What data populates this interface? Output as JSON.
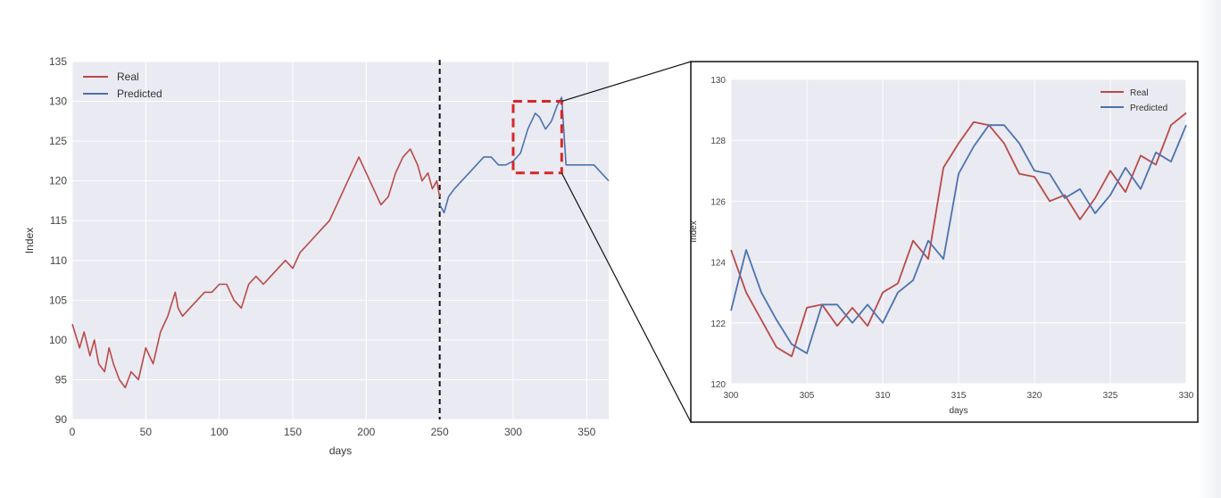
{
  "colors": {
    "real": "#b94a48",
    "predicted": "#4c72b0",
    "grid_bg": "#eaeaf2",
    "grid_line": "#ffffff",
    "zoom_box": "#d62728"
  },
  "chart_data": [
    {
      "type": "line",
      "xlabel": "days",
      "ylabel": "Index",
      "xlim": [
        0,
        365
      ],
      "ylim": [
        90,
        135
      ],
      "xticks": [
        0,
        50,
        100,
        150,
        200,
        250,
        300,
        350
      ],
      "yticks": [
        90,
        95,
        100,
        105,
        110,
        115,
        120,
        125,
        130,
        135
      ],
      "legend_position": "top-left",
      "split_marker": {
        "x": 250,
        "style": "black dashed vertical line"
      },
      "zoom_box": {
        "x_range": [
          300,
          333
        ],
        "y_range": [
          121,
          130
        ]
      },
      "series": [
        {
          "name": "Real",
          "x": [
            0,
            5,
            8,
            12,
            15,
            18,
            22,
            25,
            28,
            32,
            36,
            40,
            45,
            50,
            55,
            60,
            65,
            70,
            72,
            75,
            80,
            85,
            90,
            95,
            100,
            105,
            110,
            115,
            120,
            125,
            130,
            135,
            140,
            145,
            150,
            155,
            160,
            165,
            170,
            175,
            180,
            185,
            190,
            195,
            200,
            205,
            210,
            215,
            220,
            225,
            230,
            235,
            238,
            242,
            245,
            248,
            250
          ],
          "y": [
            102,
            99,
            101,
            98,
            100,
            97,
            96,
            99,
            97,
            95,
            94,
            96,
            95,
            99,
            97,
            101,
            103,
            106,
            104,
            103,
            104,
            105,
            106,
            106,
            107,
            107,
            105,
            104,
            107,
            108,
            107,
            108,
            109,
            110,
            109,
            111,
            112,
            113,
            114,
            115,
            117,
            119,
            121,
            123,
            121,
            119,
            117,
            118,
            121,
            123,
            124,
            122,
            120,
            121,
            119,
            120,
            118
          ]
        },
        {
          "name": "Predicted",
          "x": [
            250,
            253,
            256,
            260,
            265,
            270,
            275,
            280,
            285,
            290,
            295,
            300,
            305,
            310,
            315,
            318,
            322,
            326,
            330,
            333,
            336,
            340,
            345,
            350,
            355,
            360,
            365
          ],
          "y": [
            117,
            116,
            118,
            119,
            120,
            121,
            122,
            123,
            123,
            122,
            122,
            122.5,
            123.5,
            126.5,
            128.5,
            128,
            126.5,
            127.5,
            129.5,
            130.5,
            122,
            122,
            122,
            122,
            122,
            121,
            120
          ]
        }
      ]
    },
    {
      "type": "line",
      "xlabel": "days",
      "ylabel": "Index",
      "xlim": [
        300,
        330
      ],
      "ylim": [
        120,
        130
      ],
      "xticks": [
        300,
        305,
        310,
        315,
        320,
        325,
        330
      ],
      "yticks": [
        120,
        122,
        124,
        126,
        128,
        130
      ],
      "legend_position": "top-right",
      "series": [
        {
          "name": "Real",
          "x": [
            300,
            301,
            302,
            303,
            304,
            305,
            306,
            307,
            308,
            309,
            310,
            311,
            312,
            313,
            314,
            315,
            316,
            317,
            318,
            319,
            320,
            321,
            322,
            323,
            324,
            325,
            326,
            327,
            328,
            329,
            330
          ],
          "y": [
            124.4,
            123,
            122.1,
            121.2,
            120.9,
            122.5,
            122.6,
            121.9,
            122.5,
            121.9,
            123.0,
            123.3,
            124.7,
            124.1,
            127.1,
            127.9,
            128.6,
            128.5,
            127.9,
            126.9,
            126.8,
            126.0,
            126.2,
            125.4,
            126.1,
            127.0,
            126.3,
            127.5,
            127.2,
            128.5,
            128.9
          ]
        },
        {
          "name": "Predicted",
          "x": [
            300,
            301,
            302,
            303,
            304,
            305,
            306,
            307,
            308,
            309,
            310,
            311,
            312,
            313,
            314,
            315,
            316,
            317,
            318,
            319,
            320,
            321,
            322,
            323,
            324,
            325,
            326,
            327,
            328,
            329,
            330
          ],
          "y": [
            122.4,
            124.4,
            123.0,
            122.1,
            121.3,
            121.0,
            122.6,
            122.6,
            122.0,
            122.6,
            122.0,
            123.0,
            123.4,
            124.7,
            124.1,
            126.9,
            127.8,
            128.5,
            128.5,
            127.9,
            127.0,
            126.9,
            126.1,
            126.4,
            125.6,
            126.2,
            127.1,
            126.4,
            127.6,
            127.3,
            128.5
          ]
        }
      ]
    }
  ]
}
